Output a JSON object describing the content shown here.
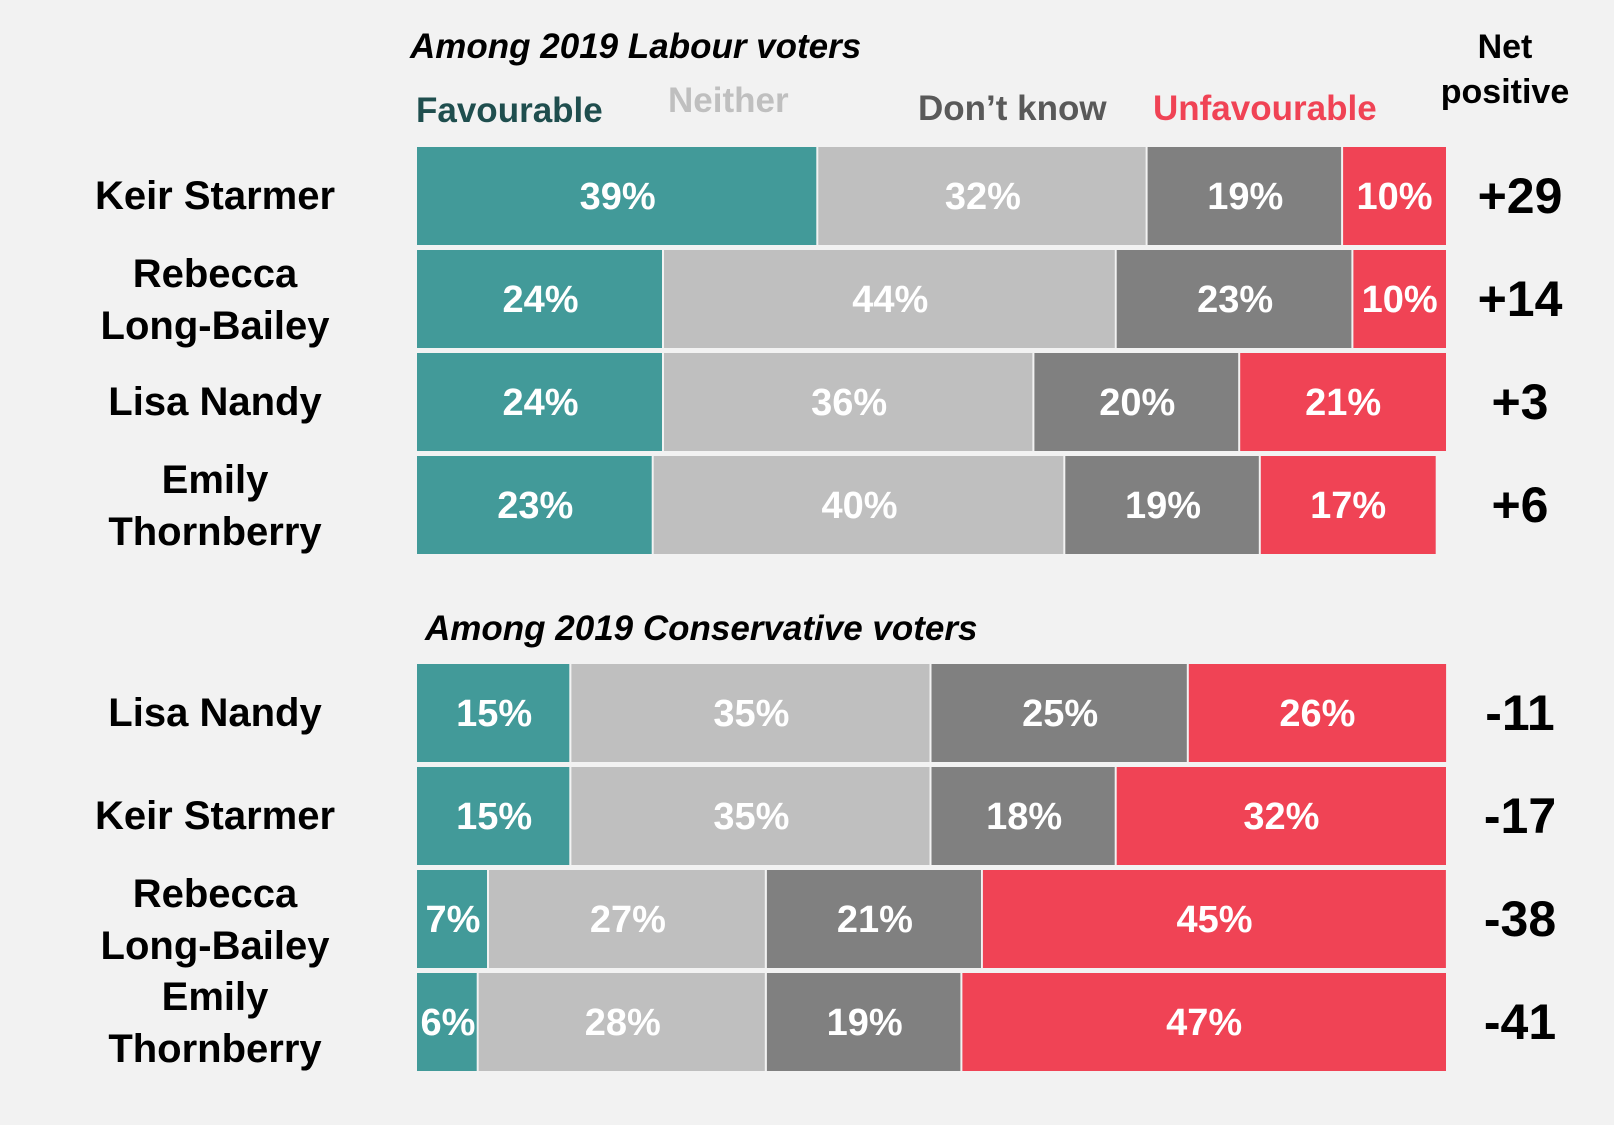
{
  "colors": {
    "background": "#f2f2f2",
    "favourable": "#429a99",
    "neither": "#bfbfbf",
    "dont_know": "#808080",
    "unfavourable": "#f04355",
    "favourable_legend": "#1f4e4e",
    "neither_legend": "#bfbfbf",
    "dont_know_legend": "#595959",
    "unfavourable_legend": "#f04355",
    "text": "#000000",
    "bar_label": "#ffffff"
  },
  "legend": {
    "favourable": "Favourable",
    "neither": "Neither",
    "dont_know": "Don’t know",
    "unfavourable": "Unfavourable"
  },
  "net_header": [
    "Net",
    "positive"
  ],
  "chart_data": [
    {
      "type": "bar",
      "orientation": "horizontal",
      "stacked": true,
      "title": "Among 2019 Labour voters",
      "categories": [
        [
          "Keir Starmer"
        ],
        [
          "Rebecca",
          "Long-Bailey"
        ],
        [
          "Lisa Nandy"
        ],
        [
          "Emily",
          "Thornberry"
        ]
      ],
      "series": [
        {
          "name": "Favourable",
          "values": [
            39,
            24,
            24,
            23
          ]
        },
        {
          "name": "Neither",
          "values": [
            32,
            44,
            36,
            40
          ]
        },
        {
          "name": "Don’t know",
          "values": [
            19,
            23,
            20,
            19
          ]
        },
        {
          "name": "Unfavourable",
          "values": [
            10,
            10,
            21,
            17
          ]
        }
      ],
      "net_positive": [
        "+29",
        "+14",
        "+3",
        "+6"
      ],
      "xlim": [
        0,
        100
      ]
    },
    {
      "type": "bar",
      "orientation": "horizontal",
      "stacked": true,
      "title": "Among 2019 Conservative voters",
      "categories": [
        [
          "Lisa Nandy"
        ],
        [
          "Keir Starmer"
        ],
        [
          "Rebecca",
          "Long-Bailey"
        ],
        [
          "Emily",
          "Thornberry"
        ]
      ],
      "series": [
        {
          "name": "Favourable",
          "values": [
            15,
            15,
            7,
            6
          ]
        },
        {
          "name": "Neither",
          "values": [
            35,
            35,
            27,
            28
          ]
        },
        {
          "name": "Don’t know",
          "values": [
            25,
            18,
            21,
            19
          ]
        },
        {
          "name": "Unfavourable",
          "values": [
            26,
            32,
            45,
            47
          ]
        }
      ],
      "net_positive": [
        "-11",
        "-17",
        "-38",
        "-41"
      ],
      "xlim": [
        0,
        100
      ]
    }
  ]
}
